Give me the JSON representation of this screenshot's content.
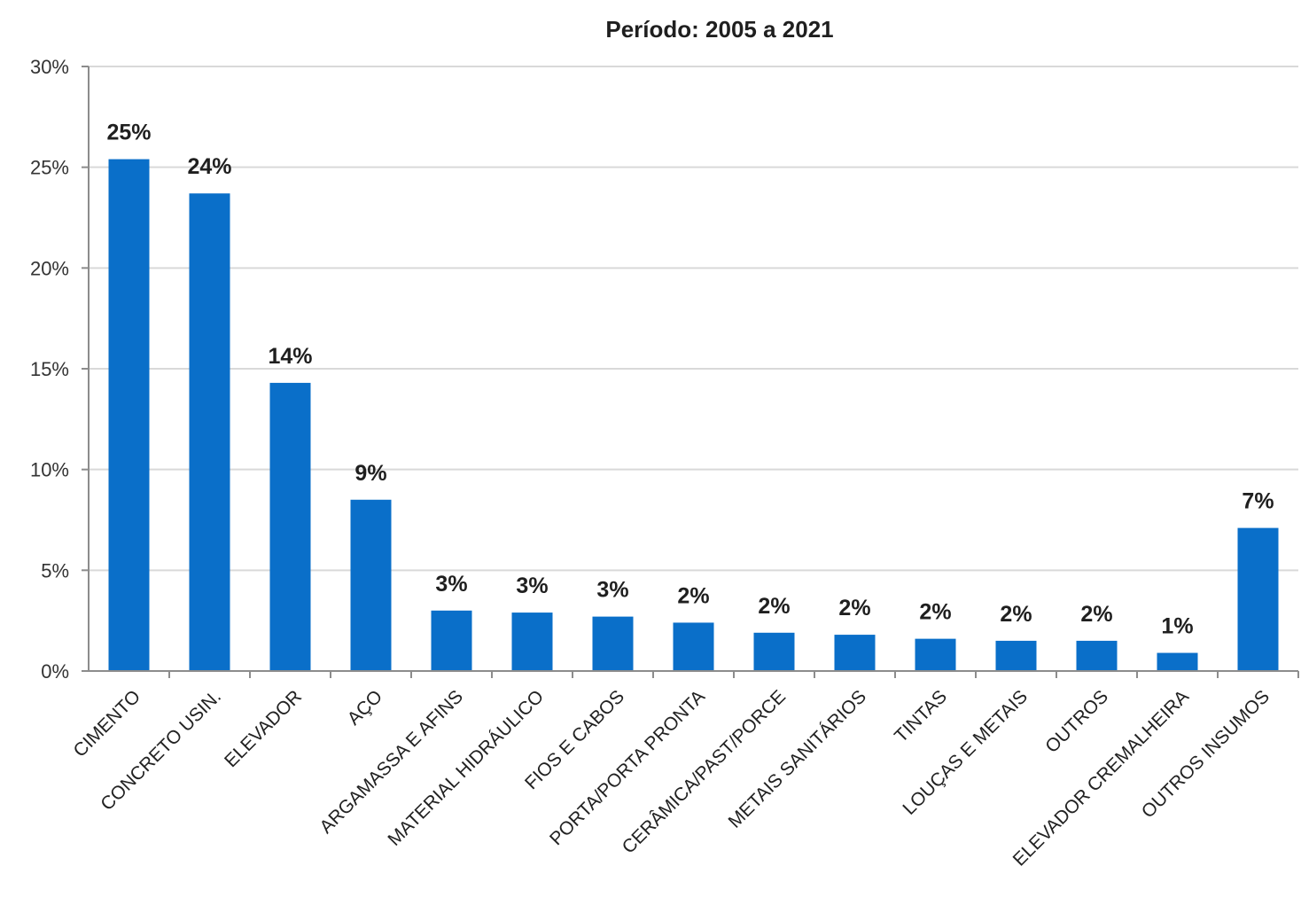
{
  "chart_data": {
    "type": "bar",
    "title": "Período: 2005 a 2021",
    "xlabel": "",
    "ylabel": "",
    "ylim": [
      0,
      30
    ],
    "y_ticks": [
      "0%",
      "5%",
      "10%",
      "15%",
      "20%",
      "25%",
      "30%"
    ],
    "grid": true,
    "legend": "none",
    "bar_color": "#0a6fc9",
    "categories": [
      "CIMENTO",
      "CONCRETO USIN.",
      "ELEVADOR",
      "AÇO",
      "ARGAMASSA E AFINS",
      "MATERIAL HIDRÁULICO",
      "FIOS E CABOS",
      "PORTA/PORTA PRONTA",
      "CERÂMICA/PAST/PORCE",
      "METAIS SANITÁRIOS",
      "TINTAS",
      "LOUÇAS E METAIS",
      "OUTROS",
      "ELEVADOR CREMALHEIRA",
      "OUTROS INSUMOS"
    ],
    "values": [
      25.4,
      23.7,
      14.3,
      8.5,
      3.0,
      2.9,
      2.7,
      2.4,
      1.9,
      1.8,
      1.6,
      1.5,
      1.5,
      0.9,
      7.1
    ],
    "data_labels": [
      "25%",
      "24%",
      "14%",
      "9%",
      "3%",
      "3%",
      "3%",
      "2%",
      "2%",
      "2%",
      "2%",
      "2%",
      "2%",
      "1%",
      "7%"
    ]
  }
}
